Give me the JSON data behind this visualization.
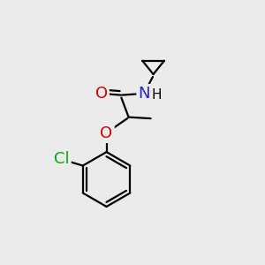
{
  "background_color": "#ebebeb",
  "atom_colors": {
    "C": "#000000",
    "H": "#000000",
    "N": "#2020cc",
    "O": "#cc0000",
    "Cl": "#00aa00"
  },
  "bond_color": "#000000",
  "bond_width": 1.6,
  "font_size_atom": 13,
  "font_size_h": 11
}
